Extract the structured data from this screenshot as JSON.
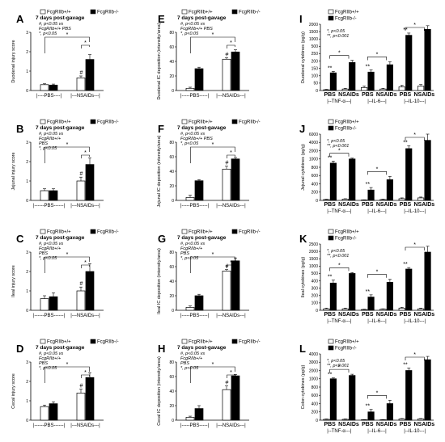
{
  "legend": {
    "wt": "FcgRIIb+/+",
    "ko": "FcgRIIb-/-"
  },
  "colors": {
    "wt": "#ffffff",
    "ko": "#000000"
  },
  "chart_data": [
    {
      "id": "A",
      "type": "bar",
      "categories": [
        "PBS",
        "NSAIDs"
      ],
      "ylabel": "Duodenal injury score",
      "ylim": [
        0,
        3
      ],
      "yticks": [
        0,
        1,
        2,
        3
      ],
      "series": [
        {
          "name": "FcgRIIb+/+",
          "values": [
            0.3,
            0.65
          ],
          "err": [
            0.05,
            0.1
          ]
        },
        {
          "name": "FcgRIIb-/-",
          "values": [
            0.28,
            1.6
          ],
          "err": [
            0.05,
            0.25
          ]
        }
      ],
      "title": "7 days post-gavage",
      "notes": [
        "#, p<0.05 vs",
        "FcgRIIb+/+ PBS",
        "*, p<0.05"
      ],
      "xgroups": [
        "|----PBS----|",
        "|---NSAIDs---|"
      ]
    },
    {
      "id": "B",
      "type": "bar",
      "categories": [
        "PBS",
        "NSAIDs"
      ],
      "ylabel": "Jejunal injury score",
      "ylim": [
        0,
        3
      ],
      "yticks": [
        0,
        1,
        2,
        3
      ],
      "series": [
        {
          "name": "FcgRIIb+/+",
          "values": [
            0.5,
            1.0
          ],
          "err": [
            0.1,
            0.2
          ]
        },
        {
          "name": "FcgRIIb-/-",
          "values": [
            0.5,
            1.85
          ],
          "err": [
            0.1,
            0.35
          ]
        }
      ],
      "title": "7 days post-gavage",
      "notes": [
        "#, p<0.05 vs",
        "FcgRIIb+/+",
        "PBS",
        "*, p<0.05"
      ],
      "xgroups": [
        "|------PBS------|",
        "|---NSAIDs---|"
      ]
    },
    {
      "id": "C",
      "type": "bar",
      "categories": [
        "PBS",
        "NSAIDs"
      ],
      "ylabel": "Ileal injury score",
      "ylim": [
        0,
        3
      ],
      "yticks": [
        0,
        1,
        2,
        3
      ],
      "series": [
        {
          "name": "FcgRIIb+/+",
          "values": [
            0.6,
            1.0
          ],
          "err": [
            0.15,
            0.2
          ]
        },
        {
          "name": "FcgRIIb-/-",
          "values": [
            0.7,
            2.0
          ],
          "err": [
            0.2,
            0.4
          ]
        }
      ],
      "title": "7 days post-gavage",
      "notes": [
        "#, p<0.05 vs",
        "FcgRIIb+/+",
        "PBS",
        "*, p<0.05"
      ],
      "xgroups": [
        "|------PBS------|",
        "|---NSAIDs---|"
      ]
    },
    {
      "id": "D",
      "type": "bar",
      "categories": [
        "PBS",
        "NSAIDs"
      ],
      "ylabel": "Cecal injury score",
      "ylim": [
        0,
        3
      ],
      "yticks": [
        0,
        1,
        2,
        3
      ],
      "series": [
        {
          "name": "FcgRIIb+/+",
          "values": [
            0.7,
            1.4
          ],
          "err": [
            0.08,
            0.2
          ]
        },
        {
          "name": "FcgRIIb-/-",
          "values": [
            0.85,
            2.2
          ],
          "err": [
            0.1,
            0.25
          ]
        }
      ],
      "title": "7 days post-gavage",
      "notes": [
        "#, p<0.05 vs",
        "FcgRIIb+/+",
        "PBS",
        "*, p<0.05"
      ],
      "xgroups": [
        "|------PBS------|",
        "|---NSAIDs---|"
      ]
    },
    {
      "id": "E",
      "type": "bar",
      "categories": [
        "PBS",
        "NSAIDs"
      ],
      "ylabel": "Duodenal IC deposition (intensity/area)",
      "ylim": [
        0,
        80
      ],
      "yticks": [
        0,
        20,
        40,
        60,
        80
      ],
      "series": [
        {
          "name": "FcgRIIb+/+",
          "values": [
            3,
            43
          ],
          "err": [
            1.5,
            2
          ]
        },
        {
          "name": "FcgRIIb-/-",
          "values": [
            30,
            53
          ],
          "err": [
            2,
            3
          ]
        }
      ],
      "title": "7 days post-gavage",
      "notes": [
        "#, p<0.05 vs",
        "FcgRIIb+/+ PBS",
        "*, p<0.05"
      ],
      "xgroups": [
        "|-----PBS-----|",
        "|---NSAIDs---|"
      ]
    },
    {
      "id": "F",
      "type": "bar",
      "categories": [
        "PBS",
        "NSAIDs"
      ],
      "ylabel": "Jejunal IC deposition (intensity/area)",
      "ylim": [
        0,
        80
      ],
      "yticks": [
        0,
        20,
        40,
        60,
        80
      ],
      "series": [
        {
          "name": "FcgRIIb+/+",
          "values": [
            4,
            43
          ],
          "err": [
            3,
            4
          ]
        },
        {
          "name": "FcgRIIb-/-",
          "values": [
            27,
            57
          ],
          "err": [
            1.5,
            2
          ]
        }
      ],
      "title": "7 days post-gavage",
      "notes": [
        "#, p<0.05 vs",
        "FcgRIIb+/+ PBS",
        "*, p<0.05"
      ],
      "xgroups": [
        "|-----PBS-----|",
        "|---NSAIDs---|"
      ]
    },
    {
      "id": "G",
      "type": "bar",
      "categories": [
        "PBS",
        "NSAIDs"
      ],
      "ylabel": "Ileal IC deposition (intensity/area)",
      "ylim": [
        0,
        80
      ],
      "yticks": [
        0,
        20,
        40,
        60,
        80
      ],
      "series": [
        {
          "name": "FcgRIIb+/+",
          "values": [
            4,
            54
          ],
          "err": [
            2,
            2
          ]
        },
        {
          "name": "FcgRIIb-/-",
          "values": [
            20,
            68
          ],
          "err": [
            2,
            4
          ]
        }
      ],
      "title": "7 days post-gavage",
      "notes": [
        "#, p<0.05 vs",
        "FcgRIIb+/+",
        "PBS",
        "*, p<0.05"
      ],
      "xgroups": [
        "|-----PBS-----|",
        "|---NSAIDs---|"
      ]
    },
    {
      "id": "H",
      "type": "bar",
      "categories": [
        "PBS",
        "NSAIDs"
      ],
      "ylabel": "Cecal IC deposition (intensity/area)",
      "ylim": [
        0,
        80
      ],
      "yticks": [
        0,
        20,
        40,
        60,
        80
      ],
      "series": [
        {
          "name": "FcgRIIb+/+",
          "values": [
            4,
            42
          ],
          "err": [
            1.5,
            5
          ]
        },
        {
          "name": "FcgRIIb-/-",
          "values": [
            16,
            61
          ],
          "err": [
            4,
            2
          ]
        }
      ],
      "title": "7 days post-gavage",
      "notes": [
        "#, p<0.05 vs",
        "FcgRIIb+/+",
        "PBS",
        "*, p<0.05"
      ],
      "xgroups": [
        "|-----PBS-----|",
        "|---NSAIDs---|"
      ]
    },
    {
      "id": "I",
      "type": "bar",
      "categories": [
        "PBS",
        "NSAIDs",
        "PBS",
        "NSAIDs",
        "PBS",
        "NSAIDs"
      ],
      "ylabel": "Duodenal cytokines (pg/g)",
      "ylim": [
        0,
        2000
      ],
      "yticks": [
        0,
        50,
        100,
        150,
        200,
        250,
        500,
        1000,
        1500,
        2000
      ],
      "series": [
        {
          "name": "FcgRIIb+/+",
          "values": [
            5,
            10,
            20,
            10,
            25,
            30
          ],
          "err": [
            3,
            5,
            10,
            5,
            10,
            10
          ]
        },
        {
          "name": "FcgRIIb-/-",
          "values": [
            120,
            190,
            125,
            175,
            1250,
            1650
          ],
          "err": [
            10,
            15,
            15,
            20,
            150,
            250
          ]
        }
      ],
      "notes": [
        "*, p<0.05",
        "**, p<0.001"
      ],
      "xgroups": [
        "|--TNF-α---|",
        "|--IL-6---|",
        "|--IL-10---|"
      ]
    },
    {
      "id": "J",
      "type": "bar",
      "categories": [
        "PBS",
        "NSAIDs",
        "PBS",
        "NSAIDs",
        "PBS",
        "NSAIDs"
      ],
      "ylabel": "Jejunal cytokines (pg/g)",
      "ylim": [
        0,
        6000
      ],
      "yticks": [
        0,
        200,
        400,
        600,
        800,
        1000,
        2000,
        4000,
        6000
      ],
      "series": [
        {
          "name": "FcgRIIb+/+",
          "values": [
            20,
            30,
            10,
            20,
            40,
            60
          ],
          "err": [
            10,
            10,
            5,
            10,
            20,
            20
          ]
        },
        {
          "name": "FcgRIIb-/-",
          "values": [
            900,
            1000,
            250,
            500,
            2500,
            4500
          ],
          "err": [
            50,
            100,
            60,
            80,
            700,
            1500
          ]
        }
      ],
      "notes": [
        "*, p<0.05",
        "**, p<0.001"
      ],
      "xgroups": [
        "|--TNF-α---|",
        "|--IL-6---|",
        "|--IL-10---|"
      ]
    },
    {
      "id": "K",
      "type": "bar",
      "categories": [
        "PBS",
        "NSAIDs",
        "PBS",
        "NSAIDs",
        "PBS",
        "NSAIDs"
      ],
      "ylabel": "Ileal cytokines (pg/g)",
      "ylim": [
        0,
        2500
      ],
      "yticks": [
        0,
        100,
        200,
        300,
        400,
        500,
        1000,
        1500,
        2000,
        2500
      ],
      "series": [
        {
          "name": "FcgRIIb+/+",
          "values": [
            20,
            20,
            10,
            15,
            30,
            20
          ],
          "err": [
            10,
            10,
            5,
            5,
            10,
            10
          ]
        },
        {
          "name": "FcgRIIb-/-",
          "values": [
            370,
            500,
            180,
            380,
            800,
            1950
          ],
          "err": [
            40,
            60,
            30,
            40,
            100,
            400
          ]
        }
      ],
      "notes": [
        "*, p<0.05",
        "**, p<0.001"
      ],
      "xgroups": [
        "|--TNF-α---|",
        "|--IL-6---|",
        "|--IL-10---|"
      ]
    },
    {
      "id": "L",
      "type": "bar",
      "categories": [
        "PBS",
        "NSAIDs",
        "PBS",
        "NSAIDs",
        "PBS",
        "NSAIDs"
      ],
      "ylabel": "Colon cytokines (pg/g)",
      "ylim": [
        0,
        4000
      ],
      "yticks": [
        0,
        200,
        400,
        600,
        800,
        1000,
        2000,
        3000,
        4000
      ],
      "series": [
        {
          "name": "FcgRIIb+/+",
          "values": [
            20,
            20,
            10,
            10,
            30,
            30
          ],
          "err": [
            10,
            10,
            5,
            5,
            10,
            10
          ]
        },
        {
          "name": "FcgRIIb-/-",
          "values": [
            1000,
            1400,
            200,
            400,
            2000,
            3300
          ],
          "err": [
            100,
            150,
            60,
            80,
            300,
            400
          ]
        }
      ],
      "notes": [
        "*, p<0.05",
        "**, p<0.001"
      ],
      "xgroups": [
        "|--TNF-α---|",
        "|--IL-6---|",
        "|--IL-10---|"
      ]
    }
  ]
}
